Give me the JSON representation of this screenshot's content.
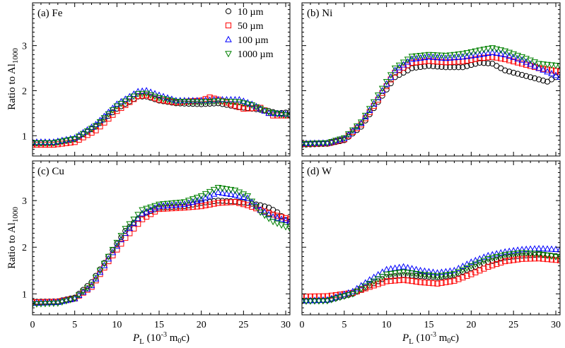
{
  "chart_data": {
    "type": "scatter",
    "xlabel": {
      "main": "P",
      "sub": "L",
      "rest": " (10",
      "sup": "-3",
      "tail": " m",
      "sub2": "0",
      "end": "c)"
    },
    "ylabel": {
      "main": "Ratio to Al",
      "sub": "1000"
    },
    "xlim": [
      0,
      30.5
    ],
    "ylim_top": [
      0.55,
      3.95
    ],
    "ylim_bottom": [
      0.55,
      3.85
    ],
    "xticks": [
      0,
      5,
      10,
      15,
      20,
      25,
      30
    ],
    "xtick_labels": [
      "0",
      "5",
      "10",
      "15",
      "20",
      "25",
      "30"
    ],
    "yticks": [
      1,
      2,
      3
    ],
    "ytick_labels": [
      "1",
      "2",
      "3"
    ],
    "series": [
      {
        "name": "10 µm",
        "marker": "circle",
        "color": "#000000"
      },
      {
        "name": "50 µm",
        "marker": "square",
        "color": "#ff0000"
      },
      {
        "name": "100 µm",
        "marker": "triangle-up",
        "color": "#0000ff"
      },
      {
        "name": "1000 µm",
        "marker": "triangle-down",
        "color": "#008000"
      }
    ],
    "legend_position": "top-right of panel (a)",
    "panels": [
      {
        "label": "(a) Fe",
        "curves": {
          "10 µm": [
            [
              0,
              0.83
            ],
            [
              2.5,
              0.84
            ],
            [
              5,
              0.92
            ],
            [
              7.5,
              1.2
            ],
            [
              10,
              1.6
            ],
            [
              12.5,
              1.87
            ],
            [
              13.5,
              1.87
            ],
            [
              15,
              1.78
            ],
            [
              17,
              1.72
            ],
            [
              20,
              1.7
            ],
            [
              22,
              1.72
            ],
            [
              24,
              1.65
            ],
            [
              26,
              1.6
            ],
            [
              28,
              1.55
            ],
            [
              29,
              1.5
            ],
            [
              30.5,
              1.52
            ]
          ],
          "50 µm": [
            [
              0,
              0.8
            ],
            [
              2.5,
              0.8
            ],
            [
              5,
              0.86
            ],
            [
              7.5,
              1.12
            ],
            [
              10,
              1.55
            ],
            [
              12.5,
              1.88
            ],
            [
              13.5,
              1.9
            ],
            [
              15,
              1.8
            ],
            [
              17,
              1.74
            ],
            [
              20,
              1.78
            ],
            [
              21,
              1.85
            ],
            [
              22,
              1.8
            ],
            [
              25,
              1.6
            ],
            [
              27,
              1.62
            ],
            [
              28.5,
              1.45
            ],
            [
              30.5,
              1.45
            ]
          ],
          "100 µm": [
            [
              0,
              0.86
            ],
            [
              2.5,
              0.86
            ],
            [
              5,
              0.95
            ],
            [
              7.5,
              1.25
            ],
            [
              10,
              1.7
            ],
            [
              12.5,
              1.98
            ],
            [
              13.5,
              2.0
            ],
            [
              15,
              1.9
            ],
            [
              17,
              1.78
            ],
            [
              20,
              1.78
            ],
            [
              22,
              1.8
            ],
            [
              24.5,
              1.8
            ],
            [
              26,
              1.7
            ],
            [
              28,
              1.5
            ],
            [
              30.5,
              1.48
            ]
          ],
          "1000 µm": [
            [
              0,
              0.84
            ],
            [
              2.5,
              0.84
            ],
            [
              5,
              0.93
            ],
            [
              7.5,
              1.22
            ],
            [
              10,
              1.66
            ],
            [
              12.5,
              1.93
            ],
            [
              13.5,
              1.94
            ],
            [
              15,
              1.84
            ],
            [
              17,
              1.76
            ],
            [
              20,
              1.75
            ],
            [
              22,
              1.77
            ],
            [
              24.5,
              1.75
            ],
            [
              26,
              1.68
            ],
            [
              28,
              1.52
            ],
            [
              30.5,
              1.44
            ]
          ]
        }
      },
      {
        "label": "(b) Ni",
        "curves": {
          "10 µm": [
            [
              0,
              0.8
            ],
            [
              3,
              0.82
            ],
            [
              5,
              0.9
            ],
            [
              7,
              1.2
            ],
            [
              9,
              1.75
            ],
            [
              11,
              2.3
            ],
            [
              13,
              2.5
            ],
            [
              15,
              2.55
            ],
            [
              17,
              2.52
            ],
            [
              19,
              2.52
            ],
            [
              21,
              2.62
            ],
            [
              22.5,
              2.6
            ],
            [
              24,
              2.45
            ],
            [
              25,
              2.4
            ],
            [
              26,
              2.35
            ],
            [
              27,
              2.3
            ],
            [
              28,
              2.25
            ],
            [
              29,
              2.2
            ],
            [
              30.5,
              2.35
            ]
          ],
          "50 µm": [
            [
              0,
              0.82
            ],
            [
              3,
              0.83
            ],
            [
              5,
              0.92
            ],
            [
              7,
              1.25
            ],
            [
              9,
              1.8
            ],
            [
              11,
              2.4
            ],
            [
              13,
              2.62
            ],
            [
              15,
              2.66
            ],
            [
              17,
              2.63
            ],
            [
              19,
              2.65
            ],
            [
              21,
              2.72
            ],
            [
              22.5,
              2.75
            ],
            [
              24,
              2.7
            ],
            [
              26,
              2.6
            ],
            [
              28,
              2.5
            ],
            [
              30.5,
              2.42
            ]
          ],
          "100 µm": [
            [
              0,
              0.83
            ],
            [
              3,
              0.84
            ],
            [
              5,
              0.94
            ],
            [
              7,
              1.28
            ],
            [
              9,
              1.85
            ],
            [
              11,
              2.45
            ],
            [
              13,
              2.7
            ],
            [
              15,
              2.75
            ],
            [
              17,
              2.72
            ],
            [
              19,
              2.75
            ],
            [
              21,
              2.8
            ],
            [
              22.5,
              2.85
            ],
            [
              24,
              2.8
            ],
            [
              26,
              2.68
            ],
            [
              28,
              2.5
            ],
            [
              30.5,
              2.3
            ]
          ],
          "1000 µm": [
            [
              0,
              0.82
            ],
            [
              3,
              0.84
            ],
            [
              5,
              0.95
            ],
            [
              7,
              1.3
            ],
            [
              9,
              1.9
            ],
            [
              11,
              2.5
            ],
            [
              13,
              2.76
            ],
            [
              15,
              2.8
            ],
            [
              17,
              2.78
            ],
            [
              19,
              2.82
            ],
            [
              21,
              2.9
            ],
            [
              22.5,
              2.95
            ],
            [
              24,
              2.88
            ],
            [
              26,
              2.75
            ],
            [
              28,
              2.6
            ],
            [
              30.5,
              2.55
            ]
          ]
        }
      },
      {
        "label": "(c) Cu",
        "curves": {
          "10 µm": [
            [
              0,
              0.83
            ],
            [
              3,
              0.84
            ],
            [
              5,
              0.92
            ],
            [
              7,
              1.25
            ],
            [
              9,
              1.8
            ],
            [
              11,
              2.35
            ],
            [
              13,
              2.7
            ],
            [
              15,
              2.85
            ],
            [
              18,
              2.88
            ],
            [
              20,
              2.95
            ],
            [
              22,
              3.0
            ],
            [
              24,
              2.98
            ],
            [
              25.5,
              2.95
            ],
            [
              27,
              2.9
            ],
            [
              28,
              2.85
            ],
            [
              29,
              2.75
            ],
            [
              30.5,
              2.5
            ]
          ],
          "50 µm": [
            [
              0,
              0.82
            ],
            [
              3,
              0.83
            ],
            [
              5,
              0.9
            ],
            [
              7,
              1.15
            ],
            [
              9,
              1.7
            ],
            [
              11,
              2.2
            ],
            [
              13,
              2.6
            ],
            [
              15,
              2.82
            ],
            [
              18,
              2.85
            ],
            [
              20,
              2.88
            ],
            [
              22,
              2.95
            ],
            [
              24,
              2.97
            ],
            [
              25.5,
              2.9
            ],
            [
              27,
              2.8
            ],
            [
              28.5,
              2.7
            ],
            [
              30.5,
              2.6
            ]
          ],
          "100 µm": [
            [
              0,
              0.8
            ],
            [
              3,
              0.82
            ],
            [
              5,
              0.9
            ],
            [
              7,
              1.18
            ],
            [
              9,
              1.75
            ],
            [
              11,
              2.3
            ],
            [
              13,
              2.72
            ],
            [
              15,
              2.88
            ],
            [
              18,
              2.92
            ],
            [
              20,
              3.02
            ],
            [
              22,
              3.18
            ],
            [
              24,
              3.12
            ],
            [
              25.5,
              3.05
            ],
            [
              27,
              2.8
            ],
            [
              28.5,
              2.65
            ],
            [
              30.5,
              2.55
            ]
          ],
          "1000 µm": [
            [
              0,
              0.78
            ],
            [
              3,
              0.8
            ],
            [
              5,
              0.9
            ],
            [
              7,
              1.2
            ],
            [
              9,
              1.8
            ],
            [
              11,
              2.4
            ],
            [
              13,
              2.8
            ],
            [
              15,
              2.92
            ],
            [
              18,
              2.97
            ],
            [
              20,
              3.1
            ],
            [
              22,
              3.28
            ],
            [
              24,
              3.22
            ],
            [
              25.5,
              3.1
            ],
            [
              27,
              2.75
            ],
            [
              28.5,
              2.55
            ],
            [
              30.5,
              2.4
            ]
          ]
        }
      },
      {
        "label": "(d) W",
        "curves": {
          "10 µm": [
            [
              0,
              0.85
            ],
            [
              3,
              0.86
            ],
            [
              6,
              1.0
            ],
            [
              8,
              1.18
            ],
            [
              10,
              1.36
            ],
            [
              12,
              1.4
            ],
            [
              14,
              1.38
            ],
            [
              16,
              1.35
            ],
            [
              18,
              1.4
            ],
            [
              20,
              1.55
            ],
            [
              22,
              1.68
            ],
            [
              24,
              1.78
            ],
            [
              26,
              1.82
            ],
            [
              28,
              1.84
            ],
            [
              30.5,
              1.8
            ]
          ],
          "50 µm": [
            [
              0,
              0.94
            ],
            [
              3,
              0.95
            ],
            [
              6,
              1.02
            ],
            [
              8,
              1.15
            ],
            [
              10,
              1.27
            ],
            [
              12,
              1.3
            ],
            [
              14,
              1.25
            ],
            [
              16,
              1.22
            ],
            [
              18,
              1.28
            ],
            [
              20,
              1.42
            ],
            [
              22,
              1.58
            ],
            [
              24,
              1.7
            ],
            [
              26,
              1.75
            ],
            [
              28,
              1.76
            ],
            [
              30.5,
              1.72
            ]
          ],
          "100 µm": [
            [
              0,
              0.85
            ],
            [
              3,
              0.87
            ],
            [
              6,
              1.05
            ],
            [
              8,
              1.3
            ],
            [
              10,
              1.52
            ],
            [
              12,
              1.58
            ],
            [
              14,
              1.5
            ],
            [
              16,
              1.45
            ],
            [
              18,
              1.5
            ],
            [
              20,
              1.68
            ],
            [
              22,
              1.82
            ],
            [
              24,
              1.9
            ],
            [
              26,
              1.95
            ],
            [
              28,
              1.97
            ],
            [
              30.5,
              1.95
            ]
          ],
          "1000 µm": [
            [
              0,
              0.84
            ],
            [
              3,
              0.85
            ],
            [
              6,
              1.0
            ],
            [
              8,
              1.22
            ],
            [
              10,
              1.42
            ],
            [
              12,
              1.47
            ],
            [
              14,
              1.42
            ],
            [
              16,
              1.38
            ],
            [
              18,
              1.43
            ],
            [
              20,
              1.6
            ],
            [
              22,
              1.75
            ],
            [
              24,
              1.84
            ],
            [
              26,
              1.88
            ],
            [
              28,
              1.86
            ],
            [
              30.5,
              1.78
            ]
          ]
        }
      }
    ]
  }
}
